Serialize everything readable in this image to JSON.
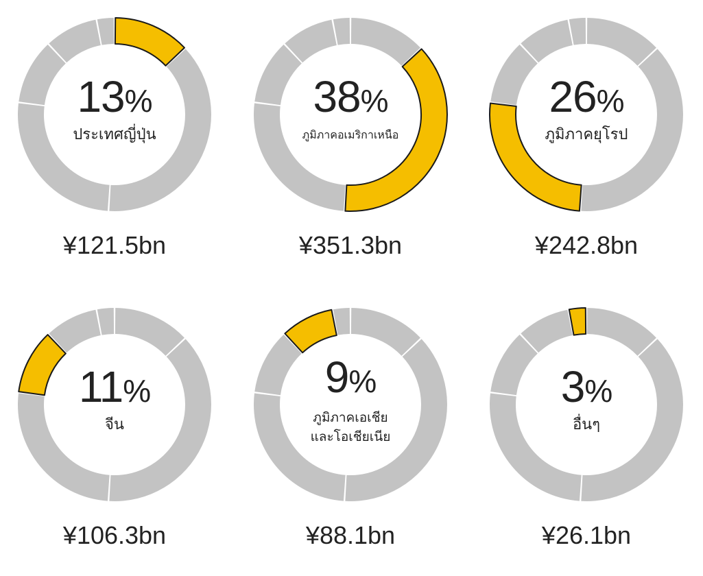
{
  "chart_data": {
    "type": "pie",
    "style": "donut-grid",
    "colors": {
      "highlight": "#F5BE00",
      "base": "#C3C3C3",
      "outline": "#1A1A1A"
    },
    "slices_order": [
      "ประเทศญี่ปุ่น",
      "ภูมิภาคอเมริกาเหนือ",
      "ภูมิภาคยุโรป",
      "จีน",
      "ภูมิภาคเอเชียและโอเชียเนีย",
      "อื่นๆ"
    ],
    "charts": [
      {
        "region": "ประเทศญี่ปุ่น",
        "percent": 13,
        "value": "¥121.5bn"
      },
      {
        "region": "ภูมิภาคอเมริกาเหนือ",
        "percent": 38,
        "value": "¥351.3bn"
      },
      {
        "region": "ภูมิภาคยุโรป",
        "percent": 26,
        "value": "¥242.8bn"
      },
      {
        "region": "จีน",
        "percent": 11,
        "value": "¥106.3bn"
      },
      {
        "region": "ภูมิภาคเอเชียและโอเชียเนีย",
        "region_lines": [
          "ภูมิภาคเอเชีย",
          "และโอเชียเนีย"
        ],
        "percent": 9,
        "value": "¥88.1bn"
      },
      {
        "region": "อื่นๆ",
        "percent": 3,
        "value": "¥26.1bn"
      }
    ]
  }
}
